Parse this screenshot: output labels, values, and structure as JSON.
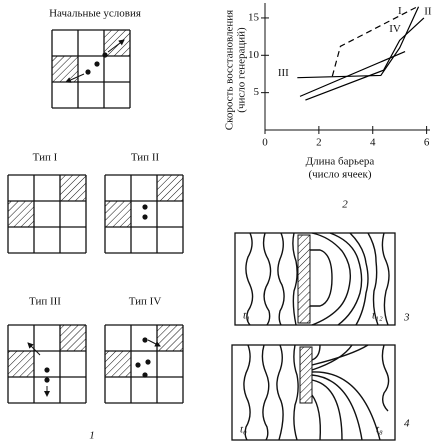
{
  "panels": {
    "initial": {
      "title": "Начальные условия"
    },
    "types": [
      "Тип I",
      "Тип II",
      "Тип III",
      "Тип IV"
    ],
    "label_1": "1",
    "panel3": {
      "left_time": "t₁",
      "right_time": "t₁₂",
      "label": "3"
    },
    "panel4": {
      "left_time": "t₀",
      "right_time": "t₈",
      "label": "4"
    }
  },
  "chart_data": {
    "type": "line",
    "ylabel": [
      "Скорость восстановления",
      "(число генераций)"
    ],
    "xlabel": [
      "Длина барьера",
      "(число ячеек)"
    ],
    "label": "2",
    "xlim": [
      0,
      6.2
    ],
    "xticks": [
      0,
      2,
      4,
      6
    ],
    "ylim": [
      0,
      17
    ],
    "yticks": [
      5,
      10,
      15
    ],
    "series": [
      {
        "name": "I",
        "color": "#000000",
        "dashed": true,
        "x": [
          2.5,
          2.8,
          5.6
        ],
        "values": [
          7.2,
          11.2,
          16.4
        ]
      },
      {
        "name": "II",
        "color": "#000000",
        "dashed": false,
        "x": [
          1.5,
          4.4,
          5.0,
          5.9
        ],
        "values": [
          4,
          8,
          12,
          15
        ]
      },
      {
        "name": "III",
        "color": "#000000",
        "dashed": false,
        "x": [
          1.2,
          4.3,
          5.0,
          5.7
        ],
        "values": [
          7,
          7.3,
          11,
          16.5
        ]
      },
      {
        "name": "IV",
        "color": "#000000",
        "dashed": false,
        "x": [
          1.3,
          5.2
        ],
        "values": [
          4.5,
          10.5
        ]
      }
    ]
  }
}
